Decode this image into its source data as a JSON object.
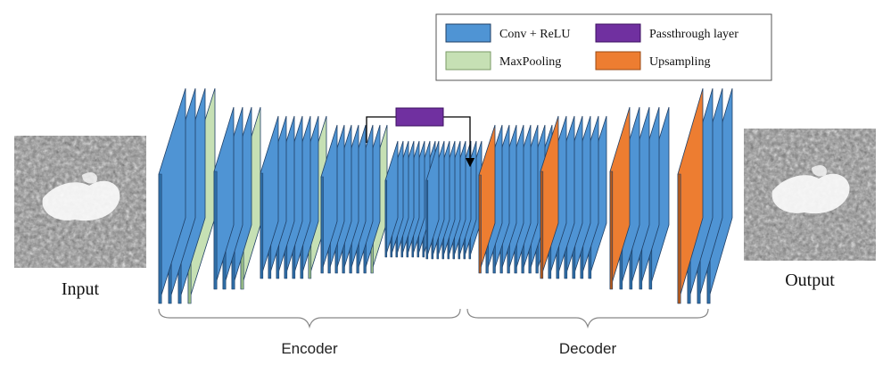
{
  "legend": {
    "items": [
      {
        "key": "conv",
        "label": "Conv + ReLU",
        "color": "#4F94D4"
      },
      {
        "key": "pass",
        "label": "Passthrough layer",
        "color": "#7030A0"
      },
      {
        "key": "pool",
        "label": "MaxPooling",
        "color": "#C6E0B4"
      },
      {
        "key": "up",
        "label": "Upsampling",
        "color": "#ED7D31"
      }
    ]
  },
  "input": {
    "label": "Input"
  },
  "output": {
    "label": "Output"
  },
  "sections": {
    "encoder": "Encoder",
    "decoder": "Decoder"
  },
  "colors": {
    "conv": "#4F94D4",
    "conv_side": "#2F6FA8",
    "pool": "#C6E0B4",
    "pool_side": "#9CBF86",
    "up": "#ED7D31",
    "up_side": "#B85A1A",
    "pass": "#7030A0",
    "stroke": "#1F3F66"
  },
  "icons": [
    "input-image-icon",
    "output-image-icon",
    "passthrough-arrow-icon"
  ]
}
